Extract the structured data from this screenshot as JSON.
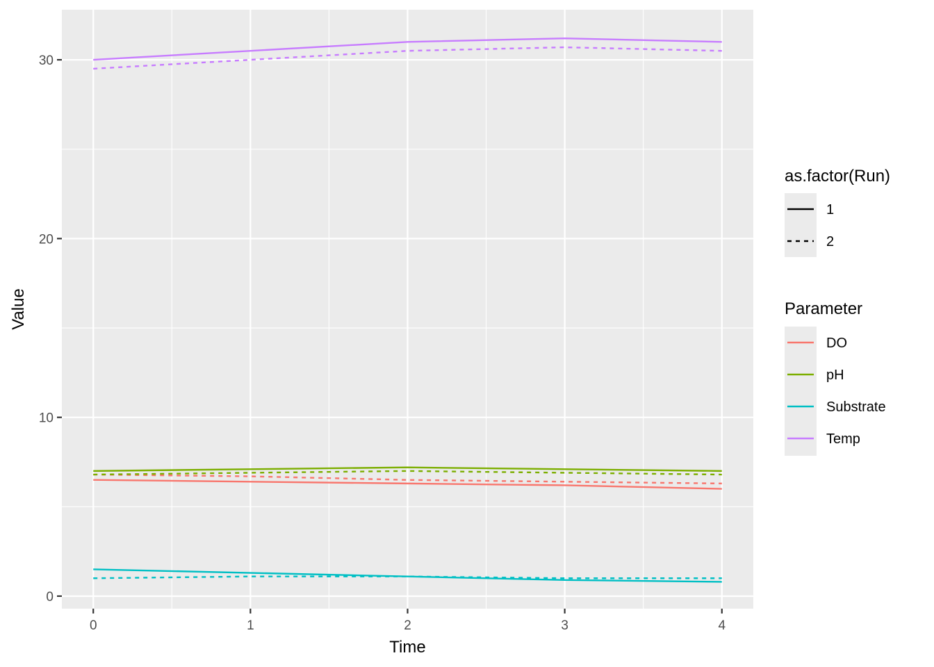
{
  "chart_data": {
    "type": "line",
    "title": "",
    "xlabel": "Time",
    "ylabel": "Value",
    "x": [
      0,
      1,
      2,
      3,
      4
    ],
    "xticks": [
      0,
      1,
      2,
      3,
      4
    ],
    "yticks": [
      0,
      10,
      20,
      30
    ],
    "xlim": [
      -0.2,
      4.2
    ],
    "ylim": [
      -0.7,
      32.8
    ],
    "grid": true,
    "legend_position": "right",
    "legends": {
      "linetype": {
        "title": "as.factor(Run)",
        "entries": [
          {
            "label": "1",
            "linetype": "solid"
          },
          {
            "label": "2",
            "linetype": "dashed"
          }
        ]
      },
      "color": {
        "title": "Parameter",
        "entries": [
          {
            "label": "DO",
            "color": "#F8766D"
          },
          {
            "label": "pH",
            "color": "#7CAE00"
          },
          {
            "label": "Substrate",
            "color": "#00BFC4"
          },
          {
            "label": "Temp",
            "color": "#C77CFF"
          }
        ]
      }
    },
    "series": [
      {
        "parameter": "DO",
        "run": "1",
        "values": [
          6.5,
          6.4,
          6.3,
          6.2,
          6.0
        ]
      },
      {
        "parameter": "DO",
        "run": "2",
        "values": [
          6.8,
          6.7,
          6.5,
          6.4,
          6.3
        ]
      },
      {
        "parameter": "pH",
        "run": "1",
        "values": [
          7.0,
          7.1,
          7.2,
          7.1,
          7.0
        ]
      },
      {
        "parameter": "pH",
        "run": "2",
        "values": [
          6.8,
          6.9,
          7.0,
          6.9,
          6.8
        ]
      },
      {
        "parameter": "Substrate",
        "run": "1",
        "values": [
          1.5,
          1.3,
          1.1,
          0.9,
          0.8
        ]
      },
      {
        "parameter": "Substrate",
        "run": "2",
        "values": [
          1.0,
          1.1,
          1.1,
          1.0,
          1.0
        ]
      },
      {
        "parameter": "Temp",
        "run": "1",
        "values": [
          30.0,
          30.5,
          31.0,
          31.2,
          31.0
        ]
      },
      {
        "parameter": "Temp",
        "run": "2",
        "values": [
          29.5,
          30.0,
          30.5,
          30.7,
          30.5
        ]
      }
    ]
  }
}
